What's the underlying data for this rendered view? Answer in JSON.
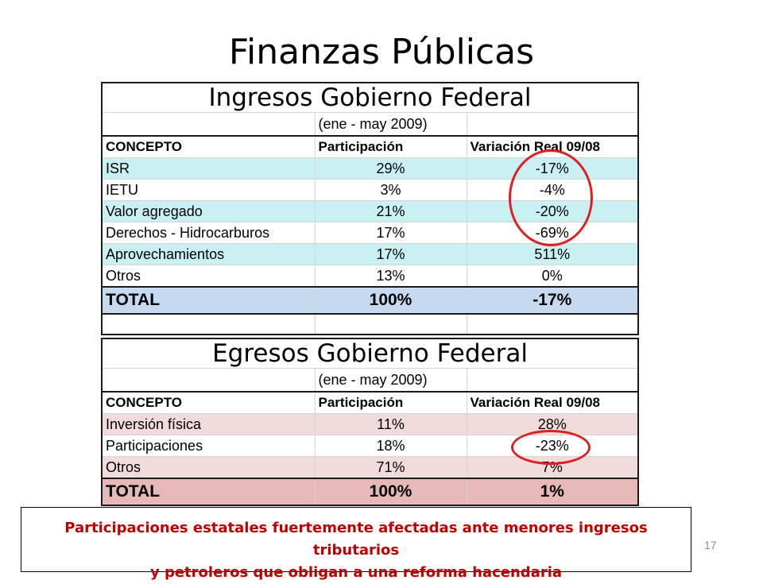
{
  "slide": {
    "title": "Finanzas Públicas",
    "page_number": "17",
    "callout_line1": "Participaciones  estatales fuertemente afectadas ante menores ingresos tributarios",
    "callout_line2": "y petroleros que obligan a una reforma hacendaria"
  },
  "ingresos": {
    "heading": "Ingresos Gobierno Federal",
    "period": "(ene - may 2009)",
    "headers": [
      "CONCEPTO",
      "Participación",
      "Variación Real 09/08"
    ],
    "rows": [
      {
        "concepto": "ISR",
        "participacion": "29%",
        "variacion": "-17%"
      },
      {
        "concepto": "IETU",
        "participacion": "3%",
        "variacion": "-4%"
      },
      {
        "concepto": "Valor agregado",
        "participacion": "21%",
        "variacion": "-20%"
      },
      {
        "concepto": "Derechos - Hidrocarburos",
        "participacion": "17%",
        "variacion": "-69%"
      },
      {
        "concepto": "Aprovechamientos",
        "participacion": "17%",
        "variacion": "511%"
      },
      {
        "concepto": "Otros",
        "participacion": "13%",
        "variacion": "0%"
      }
    ],
    "total": {
      "concepto": "TOTAL",
      "participacion": "100%",
      "variacion": "-17%"
    }
  },
  "egresos": {
    "heading": "Egresos Gobierno Federal",
    "period": "(ene - may 2009)",
    "headers": [
      "CONCEPTO",
      "Participación",
      "Variación Real 09/08"
    ],
    "rows": [
      {
        "concepto": "Inversión física",
        "participacion": "11%",
        "variacion": "28%"
      },
      {
        "concepto": "Participaciones",
        "participacion": "18%",
        "variacion": "-23%"
      },
      {
        "concepto": "Otros",
        "participacion": "71%",
        "variacion": "7%"
      }
    ],
    "total": {
      "concepto": "TOTAL",
      "participacion": "100%",
      "variacion": "1%"
    }
  },
  "colors": {
    "ingresos_band": "#c9f1f4",
    "ingresos_total": "#c5d9f0",
    "egresos_band": "#f2dcdb",
    "egresos_total": "#e6b9b8",
    "highlight_circle": "#e02020",
    "callout_text": "#c00000"
  }
}
